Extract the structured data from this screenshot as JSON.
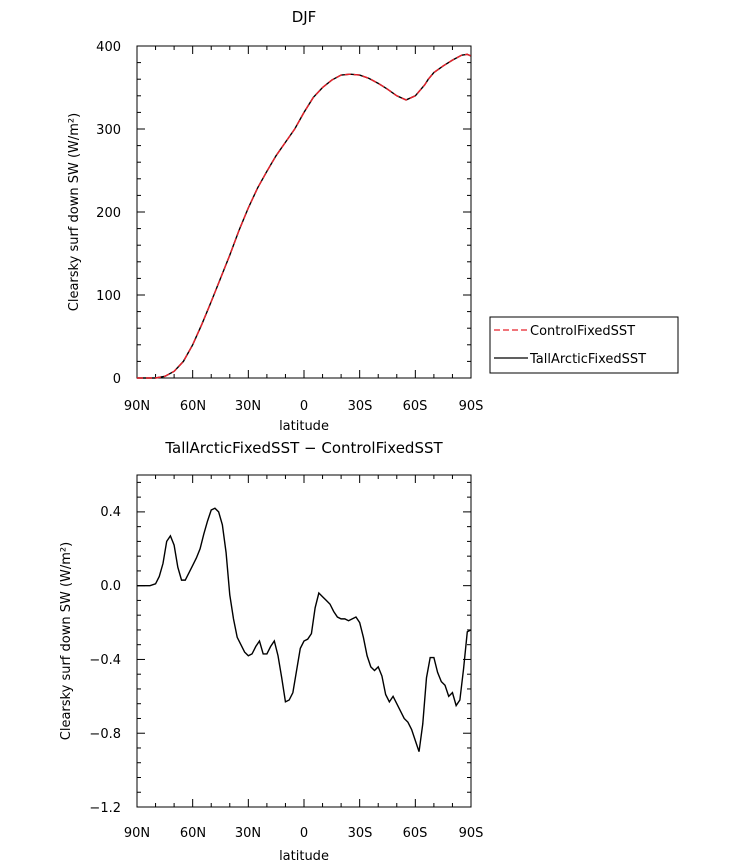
{
  "chart_data": [
    {
      "type": "line",
      "title": "DJF",
      "xlabel": "latitude",
      "ylabel": "Clearsky surf down SW (W/m²)",
      "xlim": [
        90,
        -90
      ],
      "ylim": [
        0,
        400
      ],
      "x_ticks": [
        90,
        60,
        30,
        0,
        -30,
        -60,
        -90
      ],
      "x_tick_labels": [
        "90N",
        "60N",
        "30N",
        "0",
        "30S",
        "60S",
        "90S"
      ],
      "y_ticks": [
        0,
        100,
        200,
        300,
        400
      ],
      "y_tick_labels": [
        "0",
        "100",
        "200",
        "300",
        "400"
      ],
      "legend": [
        "ControlFixedSST",
        "TallArcticFixedSST"
      ],
      "legend_position": "right",
      "series": [
        {
          "name": "ControlFixedSST",
          "color": "#e8202a",
          "dash": "dashed",
          "x": [
            90,
            85,
            80,
            75,
            70,
            65,
            60,
            55,
            50,
            45,
            40,
            35,
            30,
            25,
            20,
            15,
            10,
            5,
            0,
            -5,
            -10,
            -15,
            -20,
            -25,
            -30,
            -35,
            -40,
            -45,
            -50,
            -55,
            -60,
            -65,
            -67,
            -70,
            -75,
            -80,
            -85,
            -88,
            -90
          ],
          "values": [
            0,
            0,
            0,
            2,
            8,
            20,
            40,
            65,
            92,
            120,
            148,
            178,
            205,
            229,
            249,
            268,
            284,
            300,
            320,
            338,
            350,
            359,
            365,
            366,
            365,
            361,
            355,
            348,
            340,
            335,
            340,
            353,
            360,
            368,
            376,
            383,
            389,
            390,
            388
          ]
        },
        {
          "name": "TallArcticFixedSST",
          "color": "#000000",
          "dash": "solid",
          "x": [
            90,
            85,
            80,
            75,
            70,
            65,
            60,
            55,
            50,
            45,
            40,
            35,
            30,
            25,
            20,
            15,
            10,
            5,
            0,
            -5,
            -10,
            -15,
            -20,
            -25,
            -30,
            -35,
            -40,
            -45,
            -50,
            -55,
            -60,
            -65,
            -67,
            -70,
            -75,
            -80,
            -85,
            -88,
            -90
          ],
          "values": [
            0,
            0,
            0,
            2,
            8,
            20,
            40,
            65,
            92,
            120,
            148,
            178,
            205,
            229,
            249,
            268,
            284,
            300,
            320,
            338,
            350,
            359,
            365,
            366,
            365,
            361,
            355,
            348,
            340,
            335,
            340,
            353,
            360,
            368,
            376,
            383,
            389,
            390,
            388
          ]
        }
      ]
    },
    {
      "type": "line",
      "title": "TallArcticFixedSST − ControlFixedSST",
      "xlabel": "latitude",
      "ylabel": "Clearsky surf down SW (W/m²)",
      "xlim": [
        90,
        -90
      ],
      "ylim": [
        -1.2,
        0.6
      ],
      "x_ticks": [
        90,
        60,
        30,
        0,
        -30,
        -60,
        -90
      ],
      "x_tick_labels": [
        "90N",
        "60N",
        "30N",
        "0",
        "30S",
        "60S",
        "90S"
      ],
      "y_ticks": [
        0.4,
        0.0,
        -0.4,
        -0.8,
        -1.2
      ],
      "y_tick_labels": [
        "0.4",
        "0.0",
        "−0.4",
        "−0.8",
        "−1.2"
      ],
      "series": [
        {
          "name": "TallArcticFixedSST - ControlFixedSST",
          "color": "#000000",
          "dash": "solid",
          "x": [
            90,
            86,
            83,
            80,
            78,
            76,
            74,
            72,
            70,
            68,
            66,
            64,
            62,
            60,
            58,
            56,
            54,
            52,
            50,
            48,
            46,
            44,
            42,
            40,
            38,
            36,
            34,
            32,
            30,
            28,
            26,
            24,
            22,
            20,
            18,
            16,
            14,
            12,
            10,
            8,
            6,
            4,
            2,
            0,
            -2,
            -4,
            -6,
            -8,
            -10,
            -12,
            -14,
            -16,
            -18,
            -20,
            -22,
            -24,
            -26,
            -28,
            -30,
            -32,
            -34,
            -36,
            -38,
            -40,
            -42,
            -44,
            -46,
            -48,
            -50,
            -52,
            -54,
            -56,
            -58,
            -60,
            -62,
            -64,
            -66,
            -68,
            -70,
            -72,
            -74,
            -76,
            -78,
            -80,
            -82,
            -84,
            -86,
            -88,
            -90
          ],
          "values": [
            0,
            0,
            0,
            0.01,
            0.05,
            0.12,
            0.24,
            0.27,
            0.22,
            0.1,
            0.03,
            0.03,
            0.07,
            0.11,
            0.15,
            0.2,
            0.28,
            0.35,
            0.41,
            0.42,
            0.4,
            0.33,
            0.18,
            -0.05,
            -0.18,
            -0.28,
            -0.32,
            -0.36,
            -0.38,
            -0.37,
            -0.33,
            -0.3,
            -0.37,
            -0.37,
            -0.33,
            -0.3,
            -0.38,
            -0.5,
            -0.63,
            -0.62,
            -0.58,
            -0.46,
            -0.34,
            -0.3,
            -0.29,
            -0.26,
            -0.12,
            -0.04,
            -0.06,
            -0.08,
            -0.1,
            -0.14,
            -0.17,
            -0.18,
            -0.18,
            -0.19,
            -0.18,
            -0.17,
            -0.2,
            -0.28,
            -0.38,
            -0.44,
            -0.46,
            -0.44,
            -0.49,
            -0.59,
            -0.63,
            -0.6,
            -0.64,
            -0.68,
            -0.72,
            -0.74,
            -0.78,
            -0.84,
            -0.9,
            -0.75,
            -0.5,
            -0.39,
            -0.39,
            -0.47,
            -0.52,
            -0.54,
            -0.6,
            -0.58,
            -0.65,
            -0.62,
            -0.45,
            -0.25,
            -0.24
          ]
        }
      ]
    }
  ]
}
